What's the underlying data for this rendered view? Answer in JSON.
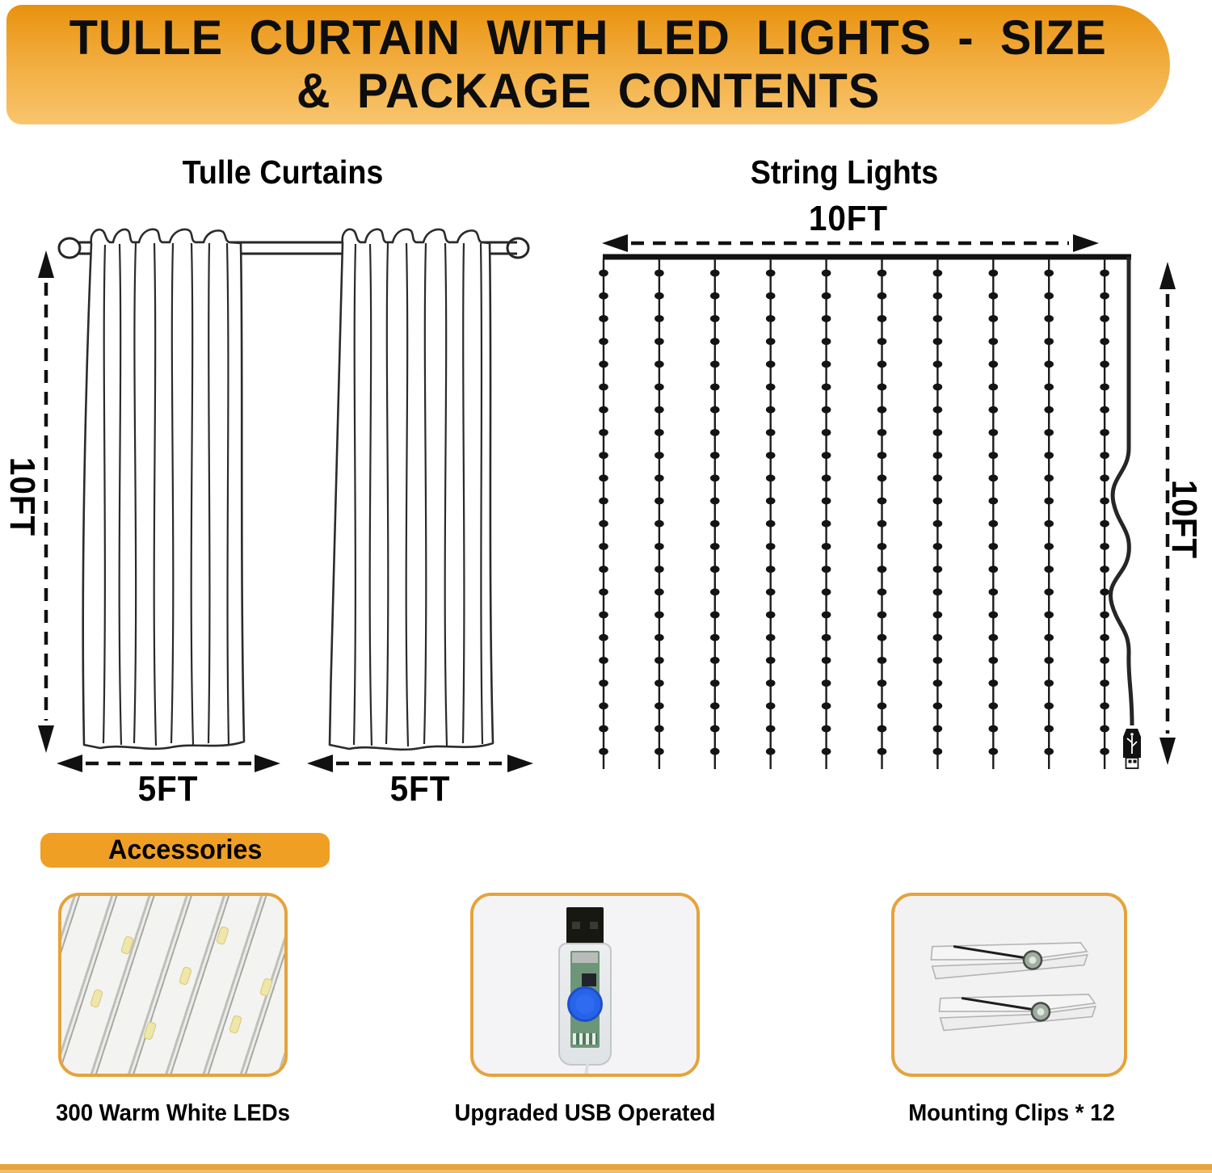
{
  "header": {
    "title_line1": "TULLE CURTAIN WITH LED LIGHTS - SIZE",
    "title_line2": "& PACKAGE CONTENTS"
  },
  "tulle_curtains": {
    "heading": "Tulle Curtains",
    "height_label": "10FT",
    "panel_width_labels": [
      "5FT",
      "5FT"
    ]
  },
  "string_lights": {
    "heading": "String Lights",
    "width_label": "10FT",
    "height_label": "10FT",
    "string_count": 10,
    "leds_per_string": 22
  },
  "accessories": {
    "heading": "Accessories",
    "items": [
      {
        "caption": "300 Warm White LEDs",
        "image": "led-string-closeup"
      },
      {
        "caption": "Upgraded USB Operated",
        "image": "usb-controller"
      },
      {
        "caption": "Mounting Clips * 12",
        "image": "mounting-clips"
      }
    ]
  },
  "colors": {
    "banner_gradient_top": "#E8920E",
    "banner_gradient_bottom": "#F8C56D",
    "accent_orange": "#F09F25",
    "card_border": "#E5A33C",
    "bottom_bar": "#E7A33C",
    "line_art": "#262626",
    "usb_button_blue": "#2663E8"
  }
}
